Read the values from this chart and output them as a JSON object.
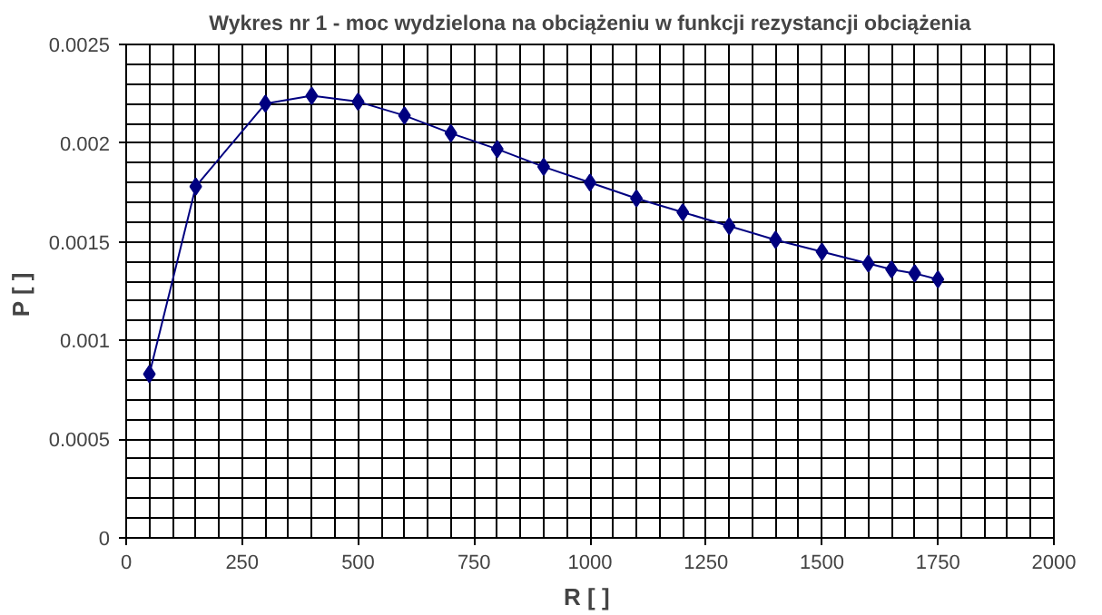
{
  "chart_data": {
    "type": "line",
    "title": "Wykres nr 1 - moc wydzielona na obciążeniu w funkcji rezystancji obciążenia",
    "xlabel": "R  [ ]",
    "ylabel": "P  [ ]",
    "x": [
      50,
      150,
      300,
      400,
      500,
      600,
      700,
      800,
      900,
      1000,
      1100,
      1200,
      1300,
      1400,
      1500,
      1600,
      1650,
      1700,
      1750
    ],
    "series": [
      {
        "color": "#000080",
        "values": [
          0.00083,
          0.00178,
          0.0022,
          0.00224,
          0.00221,
          0.00214,
          0.00205,
          0.00197,
          0.00188,
          0.0018,
          0.00172,
          0.00165,
          0.00158,
          0.00151,
          0.00145,
          0.00139,
          0.00136,
          0.00134,
          0.00131
        ]
      }
    ],
    "xlim": [
      0,
      2000
    ],
    "xticks": [
      0,
      250,
      500,
      750,
      1000,
      1250,
      1500,
      1750,
      2000
    ],
    "ylim": [
      0,
      0.0025
    ],
    "yticks": [
      0,
      0.0005,
      0.001,
      0.0015,
      0.002,
      0.0025
    ],
    "grid": true,
    "marker": "diamond",
    "line_style": "solid"
  }
}
